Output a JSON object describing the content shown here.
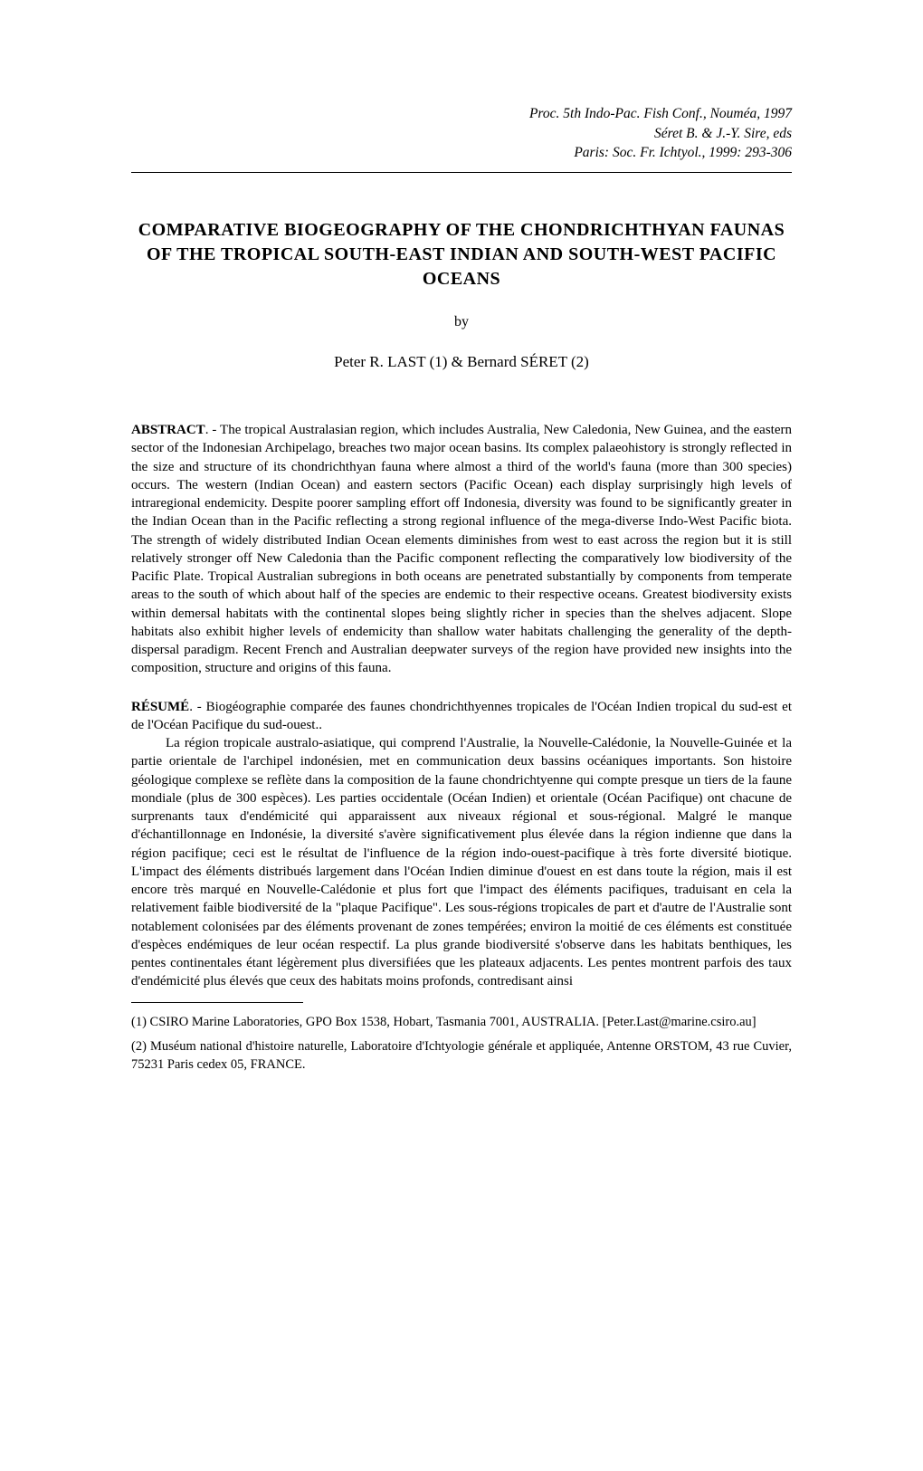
{
  "header": {
    "line1": "Proc. 5th Indo-Pac. Fish Conf., Nouméa, 1997",
    "line2": "Séret B. & J.-Y. Sire, eds",
    "line3": "Paris: Soc. Fr. Ichtyol., 1999: 293-306"
  },
  "title": "COMPARATIVE BIOGEOGRAPHY OF THE CHONDRICHTHYAN FAUNAS OF THE TROPICAL SOUTH-EAST INDIAN AND SOUTH-WEST PACIFIC OCEANS",
  "by": "by",
  "authors": "Peter R. LAST (1) & Bernard SÉRET (2)",
  "abstract_label": "ABSTRACT",
  "abstract_text": ". - The tropical Australasian region, which includes Australia, New Caledonia, New Guinea, and the eastern sector of the Indonesian Archipelago, breaches two major ocean basins. Its complex palaeohistory is strongly reflected in the size and structure of its chondrichthyan fauna where almost a third of the world's fauna (more than 300 species) occurs. The western (Indian Ocean) and eastern sectors (Pacific Ocean) each display surprisingly high levels of intraregional endemicity. Despite poorer sampling effort off Indonesia, diversity was found to be significantly greater in the Indian Ocean than in the Pacific reflecting a strong regional influence of the mega-diverse Indo-West Pacific biota. The strength of widely distributed Indian Ocean elements diminishes from west to east across the region but it is still relatively stronger off New Caledonia than the Pacific component reflecting the comparatively low biodiversity of the Pacific Plate. Tropical Australian subregions in both oceans are penetrated substantially by components from temperate areas to the south of which about half of the species are endemic to their respective oceans. Greatest biodiversity exists within demersal habitats with the continental slopes being slightly richer in species than the shelves adjacent. Slope habitats also exhibit higher levels of endemicity than shallow water habitats challenging the generality of the depth-dispersal paradigm. Recent French and Australian deepwater surveys of the region have provided new insights into the composition, structure and origins of this fauna.",
  "resume_label": "RÉSUMÉ",
  "resume_intro": ". - Biogéographie comparée des faunes chondrichthyennes tropicales de l'Océan Indien tropical du sud-est et de l'Océan Pacifique du sud-ouest..",
  "resume_body": "La région tropicale australo-asiatique, qui comprend l'Australie, la Nouvelle-Calédonie, la Nouvelle-Guinée et la partie orientale de l'archipel indonésien, met en communication deux bassins océaniques importants. Son histoire géologique complexe se reflète dans la composition de la faune chondrichtyenne qui compte presque un tiers de la faune mondiale (plus de 300 espèces). Les parties occidentale (Océan Indien) et orientale (Océan Pacifique) ont chacune de surprenants taux d'endémicité qui apparaissent aux niveaux régional et sous-régional. Malgré le manque d'échantillonnage en Indonésie, la diversité s'avère significativement plus élevée dans la région indienne que dans la région pacifique; ceci est le résultat de l'influence de la région indo-ouest-pacifique à très forte diversité biotique. L'impact des éléments distribués largement dans l'Océan Indien diminue d'ouest en est dans toute la région, mais il est encore très marqué en Nouvelle-Calédonie et plus fort que l'impact des éléments pacifiques, traduisant en cela la relativement faible biodiversité de la \"plaque Pacifique\". Les sous-régions tropicales de part et d'autre de l'Australie sont notablement colonisées par des éléments provenant de zones tempérées; environ la moitié de ces éléments est constituée d'espèces endémiques de leur océan respectif. La plus grande biodiversité s'observe dans les habitats benthiques, les pentes continentales étant légèrement plus diversifiées que les plateaux adjacents. Les pentes montrent parfois des taux d'endémicité plus élevés que ceux des habitats moins profonds, contredisant ainsi",
  "footnote1": "(1) CSIRO Marine Laboratories, GPO Box 1538, Hobart, Tasmania 7001, AUSTRALIA. [Peter.Last@marine.csiro.au]",
  "footnote2": "(2) Muséum national d'histoire naturelle, Laboratoire d'Ichtyologie générale et appliquée, Antenne ORSTOM, 43 rue Cuvier, 75231 Paris cedex 05, FRANCE."
}
